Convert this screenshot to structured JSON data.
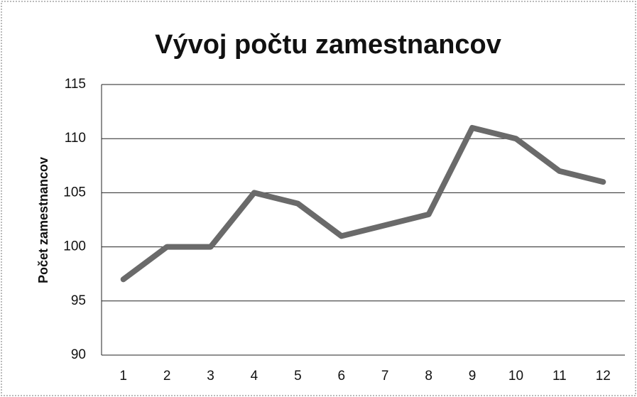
{
  "chart_data": {
    "type": "line",
    "title": "Vývoj počtu zamestnancov",
    "y_label": "Počet zamestnancov",
    "categories": [
      "1",
      "2",
      "3",
      "4",
      "5",
      "6",
      "7",
      "8",
      "9",
      "10",
      "11",
      "12"
    ],
    "values": [
      97,
      100,
      100,
      105,
      104,
      101,
      102,
      103,
      111,
      110,
      107,
      106
    ],
    "color": "#6a6a6a",
    "ylim": [
      90,
      115
    ],
    "yticks": [
      90,
      95,
      100,
      105,
      110,
      115
    ],
    "grid": true
  }
}
